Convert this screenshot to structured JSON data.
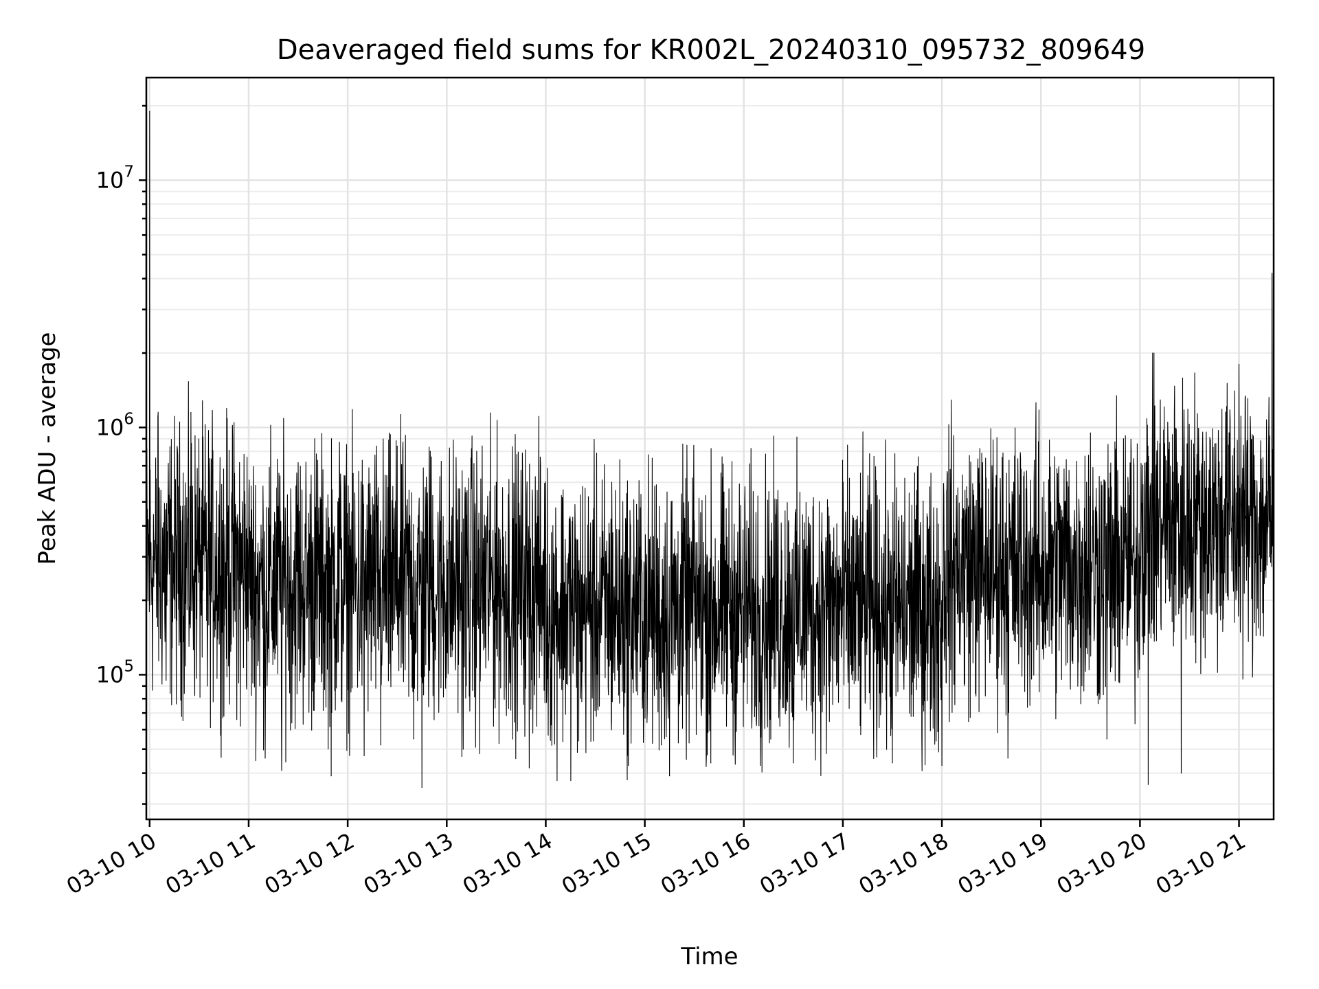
{
  "chart_data": {
    "type": "line",
    "title": "Deaveraged field sums for KR002L_20240310_095732_809649",
    "xlabel": "Time",
    "ylabel": "Peak ADU - average",
    "x_scale": "time",
    "y_scale": "log",
    "xlim": [
      "2024-03-10 09:58",
      "2024-03-10 21:21"
    ],
    "ylim": [
      26000,
      26000000
    ],
    "x_ticks": [
      {
        "value": "2024-03-10 10:00",
        "label": "03-10 10"
      },
      {
        "value": "2024-03-10 11:00",
        "label": "03-10 11"
      },
      {
        "value": "2024-03-10 12:00",
        "label": "03-10 12"
      },
      {
        "value": "2024-03-10 13:00",
        "label": "03-10 13"
      },
      {
        "value": "2024-03-10 14:00",
        "label": "03-10 14"
      },
      {
        "value": "2024-03-10 15:00",
        "label": "03-10 15"
      },
      {
        "value": "2024-03-10 16:00",
        "label": "03-10 16"
      },
      {
        "value": "2024-03-10 17:00",
        "label": "03-10 17"
      },
      {
        "value": "2024-03-10 18:00",
        "label": "03-10 18"
      },
      {
        "value": "2024-03-10 19:00",
        "label": "03-10 19"
      },
      {
        "value": "2024-03-10 20:00",
        "label": "03-10 20"
      },
      {
        "value": "2024-03-10 21:00",
        "label": "03-10 21"
      }
    ],
    "y_ticks": [
      {
        "value": 100000,
        "base": "10",
        "exp": "5"
      },
      {
        "value": 1000000,
        "base": "10",
        "exp": "6"
      },
      {
        "value": 10000000,
        "base": "10",
        "exp": "7"
      }
    ],
    "grid": true,
    "series": [
      {
        "color": "#000000",
        "points": [
          [
            "2024-03-10 09:58",
            250000
          ],
          [
            "2024-03-10 10:00",
            19000000
          ],
          [
            "2024-03-10 10:02",
            300000
          ],
          [
            "2024-03-10 10:05",
            1100000
          ],
          [
            "2024-03-10 10:10",
            95000
          ],
          [
            "2024-03-10 10:15",
            300000
          ],
          [
            "2024-03-10 10:20",
            480000
          ],
          [
            "2024-03-10 10:25",
            1150000
          ],
          [
            "2024-03-10 10:30",
            260000
          ],
          [
            "2024-03-10 10:35",
            90000
          ],
          [
            "2024-03-10 10:40",
            300000
          ],
          [
            "2024-03-10 10:45",
            68000
          ],
          [
            "2024-03-10 10:50",
            380000
          ],
          [
            "2024-03-10 10:55",
            62000
          ],
          [
            "2024-03-10 11:00",
            330000
          ],
          [
            "2024-03-10 11:10",
            46000
          ],
          [
            "2024-03-10 11:20",
            41000
          ],
          [
            "2024-03-10 11:30",
            720000
          ],
          [
            "2024-03-10 11:40",
            900000
          ],
          [
            "2024-03-10 11:50",
            39000
          ],
          [
            "2024-03-10 11:55",
            870000
          ],
          [
            "2024-03-10 12:00",
            300000
          ],
          [
            "2024-03-10 12:10",
            47000
          ],
          [
            "2024-03-10 12:20",
            52000
          ],
          [
            "2024-03-10 12:30",
            840000
          ],
          [
            "2024-03-10 12:40",
            55000
          ],
          [
            "2024-03-10 12:45",
            35000
          ],
          [
            "2024-03-10 12:50",
            800000
          ],
          [
            "2024-03-10 13:00",
            290000
          ],
          [
            "2024-03-10 13:10",
            50000
          ],
          [
            "2024-03-10 13:15",
            820000
          ],
          [
            "2024-03-10 13:20",
            48000
          ],
          [
            "2024-03-10 13:30",
            600000
          ],
          [
            "2024-03-10 13:40",
            55000
          ],
          [
            "2024-03-10 13:50",
            42000
          ],
          [
            "2024-03-10 14:00",
            260000
          ],
          [
            "2024-03-10 14:10",
            520000
          ],
          [
            "2024-03-10 14:20",
            54000
          ],
          [
            "2024-03-10 14:30",
            210000
          ],
          [
            "2024-03-10 14:40",
            600000
          ],
          [
            "2024-03-10 14:50",
            43000
          ],
          [
            "2024-03-10 15:00",
            200000
          ],
          [
            "2024-03-10 15:10",
            52000
          ],
          [
            "2024-03-10 15:15",
            39000
          ],
          [
            "2024-03-10 15:30",
            420000
          ],
          [
            "2024-03-10 15:40",
            44000
          ],
          [
            "2024-03-10 15:50",
            180000
          ],
          [
            "2024-03-10 16:00",
            190000
          ],
          [
            "2024-03-10 16:10",
            43000
          ],
          [
            "2024-03-10 16:20",
            510000
          ],
          [
            "2024-03-10 16:30",
            44000
          ],
          [
            "2024-03-10 16:40",
            180000
          ],
          [
            "2024-03-10 16:50",
            48000
          ],
          [
            "2024-03-10 17:00",
            190000
          ],
          [
            "2024-03-10 17:15",
            380000
          ],
          [
            "2024-03-10 17:30",
            44000
          ],
          [
            "2024-03-10 17:45",
            180000
          ],
          [
            "2024-03-10 18:00",
            43000
          ],
          [
            "2024-03-10 18:10",
            190000
          ],
          [
            "2024-03-10 18:20",
            480000
          ],
          [
            "2024-03-10 18:30",
            200000
          ],
          [
            "2024-03-10 18:40",
            46000
          ],
          [
            "2024-03-10 18:50",
            190000
          ],
          [
            "2024-03-10 19:00",
            210000
          ],
          [
            "2024-03-10 19:10",
            650000
          ],
          [
            "2024-03-10 19:20",
            270000
          ],
          [
            "2024-03-10 19:30",
            950000
          ],
          [
            "2024-03-10 19:40",
            55000
          ],
          [
            "2024-03-10 19:50",
            900000
          ],
          [
            "2024-03-10 20:00",
            300000
          ],
          [
            "2024-03-10 20:05",
            36000
          ],
          [
            "2024-03-10 20:15",
            860000
          ],
          [
            "2024-03-10 20:25",
            40000
          ],
          [
            "2024-03-10 20:35",
            420000
          ],
          [
            "2024-03-10 20:45",
            320000
          ],
          [
            "2024-03-10 20:55",
            500000
          ],
          [
            "2024-03-10 21:00",
            1800000
          ],
          [
            "2024-03-10 21:05",
            300000
          ],
          [
            "2024-03-10 21:10",
            480000
          ],
          [
            "2024-03-10 21:15",
            280000
          ],
          [
            "2024-03-10 21:20",
            4200000
          ],
          [
            "2024-03-10 21:21",
            480000
          ]
        ]
      }
    ]
  }
}
